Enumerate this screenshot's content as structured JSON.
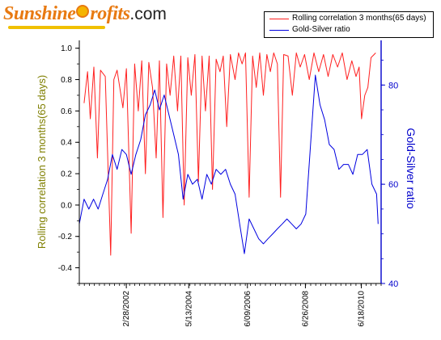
{
  "logo": {
    "brand_pre": "Sunshine",
    "brand_post": "rofits",
    "suffix": ".com"
  },
  "colors": {
    "correlation": "#ff2020",
    "ratio": "#0000e0",
    "left_axis_text": "#7f7f00",
    "right_axis": "#0000cc",
    "brand_orange": "#e87a12"
  },
  "chart_data": {
    "type": "line",
    "legend": {
      "placement": "top-right",
      "entries": [
        "Rolling correlation 3 months(65 days)",
        "Gold-Silver ratio"
      ]
    },
    "x": {
      "type": "date",
      "range": [
        "2000-07-01",
        "2011-02-28"
      ],
      "tick_labels": [
        "2/28/2002",
        "5/13/2004",
        "6/09/2006",
        "6/26/2008",
        "6/18/2010"
      ],
      "tick_dates": [
        "2002-02-28",
        "2004-05-13",
        "2006-06-09",
        "2008-06-26",
        "2010-06-18"
      ]
    },
    "y_left": {
      "label": "Rolling correlation 3 months(65 days)",
      "range": [
        -0.5,
        1.05
      ],
      "ticks": [
        -0.4,
        -0.2,
        0.0,
        0.2,
        0.4,
        0.6,
        0.8,
        1.0
      ],
      "tick_labels": [
        "-0.4",
        "-0.2",
        "0.0",
        "0.2",
        "0.4",
        "0.6",
        "0.8",
        "1.0"
      ]
    },
    "y_right": {
      "label": "Gold-Silver ratio",
      "range": [
        40,
        89
      ],
      "ticks": [
        40,
        60,
        80
      ],
      "tick_labels": [
        "40",
        "60",
        "80"
      ]
    },
    "grid": false,
    "series": [
      {
        "name": "Rolling correlation 3 months(65 days)",
        "axis": "left",
        "points": [
          [
            "2000-09-01",
            0.65
          ],
          [
            "2000-10-15",
            0.85
          ],
          [
            "2000-11-20",
            0.55
          ],
          [
            "2001-01-05",
            0.88
          ],
          [
            "2001-02-20",
            0.3
          ],
          [
            "2001-04-01",
            0.86
          ],
          [
            "2001-06-01",
            0.82
          ],
          [
            "2001-08-10",
            -0.32
          ],
          [
            "2001-09-20",
            0.8
          ],
          [
            "2001-11-01",
            0.86
          ],
          [
            "2002-01-15",
            0.62
          ],
          [
            "2002-03-01",
            0.87
          ],
          [
            "2002-05-01",
            -0.18
          ],
          [
            "2002-06-15",
            0.9
          ],
          [
            "2002-08-01",
            0.6
          ],
          [
            "2002-09-15",
            0.92
          ],
          [
            "2002-11-01",
            0.2
          ],
          [
            "2002-12-15",
            0.91
          ],
          [
            "2003-02-01",
            0.75
          ],
          [
            "2003-03-20",
            0.3
          ],
          [
            "2003-05-01",
            0.92
          ],
          [
            "2003-06-15",
            -0.08
          ],
          [
            "2003-08-01",
            0.9
          ],
          [
            "2003-09-15",
            0.7
          ],
          [
            "2003-11-01",
            0.95
          ],
          [
            "2003-12-20",
            0.6
          ],
          [
            "2004-02-01",
            0.95
          ],
          [
            "2004-03-15",
            0.0
          ],
          [
            "2004-05-01",
            0.94
          ],
          [
            "2004-06-15",
            0.7
          ],
          [
            "2004-08-01",
            0.96
          ],
          [
            "2004-09-15",
            0.15
          ],
          [
            "2004-11-01",
            0.95
          ],
          [
            "2004-12-15",
            0.6
          ],
          [
            "2005-02-01",
            0.95
          ],
          [
            "2005-03-15",
            0.1
          ],
          [
            "2005-05-01",
            0.93
          ],
          [
            "2005-06-20",
            0.85
          ],
          [
            "2005-08-01",
            0.95
          ],
          [
            "2005-09-15",
            0.5
          ],
          [
            "2005-11-01",
            0.96
          ],
          [
            "2006-01-01",
            0.8
          ],
          [
            "2006-02-15",
            0.97
          ],
          [
            "2006-04-01",
            0.9
          ],
          [
            "2006-05-15",
            0.97
          ],
          [
            "2006-07-01",
            0.05
          ],
          [
            "2006-08-15",
            0.95
          ],
          [
            "2006-10-01",
            0.75
          ],
          [
            "2006-11-15",
            0.97
          ],
          [
            "2007-01-01",
            0.7
          ],
          [
            "2007-02-15",
            0.96
          ],
          [
            "2007-04-01",
            0.85
          ],
          [
            "2007-05-15",
            0.97
          ],
          [
            "2007-07-01",
            0.9
          ],
          [
            "2007-08-10",
            0.05
          ],
          [
            "2007-09-20",
            0.96
          ],
          [
            "2007-11-15",
            0.95
          ],
          [
            "2008-01-10",
            0.7
          ],
          [
            "2008-03-01",
            0.97
          ],
          [
            "2008-04-20",
            0.88
          ],
          [
            "2008-06-15",
            0.96
          ],
          [
            "2008-08-15",
            0.8
          ],
          [
            "2008-10-15",
            0.97
          ],
          [
            "2008-12-15",
            0.85
          ],
          [
            "2009-02-15",
            0.96
          ],
          [
            "2009-04-15",
            0.82
          ],
          [
            "2009-06-15",
            0.96
          ],
          [
            "2009-08-15",
            0.88
          ],
          [
            "2009-10-15",
            0.97
          ],
          [
            "2009-12-15",
            0.8
          ],
          [
            "2010-02-15",
            0.92
          ],
          [
            "2010-04-10",
            0.82
          ],
          [
            "2010-05-20",
            0.88
          ],
          [
            "2010-06-20",
            0.55
          ],
          [
            "2010-08-01",
            0.7
          ],
          [
            "2010-09-10",
            0.75
          ],
          [
            "2010-10-20",
            0.94
          ],
          [
            "2010-12-20",
            0.97
          ]
        ]
      },
      {
        "name": "Gold-Silver ratio",
        "axis": "right",
        "points": [
          [
            "2000-07-01",
            52
          ],
          [
            "2000-09-01",
            57
          ],
          [
            "2000-11-01",
            55
          ],
          [
            "2001-01-01",
            57
          ],
          [
            "2001-03-01",
            55
          ],
          [
            "2001-05-01",
            58
          ],
          [
            "2001-07-01",
            61
          ],
          [
            "2001-09-01",
            66
          ],
          [
            "2001-11-01",
            63
          ],
          [
            "2002-01-01",
            67
          ],
          [
            "2002-03-01",
            66
          ],
          [
            "2002-05-01",
            62
          ],
          [
            "2002-07-01",
            66
          ],
          [
            "2002-09-01",
            69
          ],
          [
            "2002-11-01",
            74
          ],
          [
            "2003-01-01",
            76
          ],
          [
            "2003-03-01",
            79
          ],
          [
            "2003-05-01",
            75
          ],
          [
            "2003-07-01",
            78
          ],
          [
            "2003-09-01",
            74
          ],
          [
            "2003-11-01",
            70
          ],
          [
            "2004-01-01",
            66
          ],
          [
            "2004-03-01",
            57
          ],
          [
            "2004-05-01",
            62
          ],
          [
            "2004-07-01",
            60
          ],
          [
            "2004-09-01",
            61
          ],
          [
            "2004-11-01",
            57
          ],
          [
            "2005-01-01",
            62
          ],
          [
            "2005-03-01",
            60
          ],
          [
            "2005-05-01",
            63
          ],
          [
            "2005-07-01",
            62
          ],
          [
            "2005-09-01",
            63
          ],
          [
            "2005-11-01",
            60
          ],
          [
            "2006-01-01",
            58
          ],
          [
            "2006-03-01",
            52
          ],
          [
            "2006-05-01",
            46
          ],
          [
            "2006-07-01",
            53
          ],
          [
            "2006-09-01",
            51
          ],
          [
            "2006-11-01",
            49
          ],
          [
            "2007-01-01",
            48
          ],
          [
            "2007-03-01",
            49
          ],
          [
            "2007-05-01",
            50
          ],
          [
            "2007-07-01",
            51
          ],
          [
            "2007-09-01",
            52
          ],
          [
            "2007-11-01",
            53
          ],
          [
            "2008-01-01",
            52
          ],
          [
            "2008-03-01",
            51
          ],
          [
            "2008-05-01",
            52
          ],
          [
            "2008-07-01",
            54
          ],
          [
            "2008-09-01",
            68
          ],
          [
            "2008-11-01",
            82
          ],
          [
            "2009-01-01",
            76
          ],
          [
            "2009-03-01",
            73
          ],
          [
            "2009-05-01",
            68
          ],
          [
            "2009-07-01",
            67
          ],
          [
            "2009-09-01",
            63
          ],
          [
            "2009-11-01",
            64
          ],
          [
            "2010-01-01",
            64
          ],
          [
            "2010-03-01",
            62
          ],
          [
            "2010-05-01",
            66
          ],
          [
            "2010-07-01",
            66
          ],
          [
            "2010-09-01",
            67
          ],
          [
            "2010-11-01",
            60
          ],
          [
            "2011-01-01",
            58
          ],
          [
            "2011-01-20",
            52
          ]
        ]
      }
    ]
  }
}
